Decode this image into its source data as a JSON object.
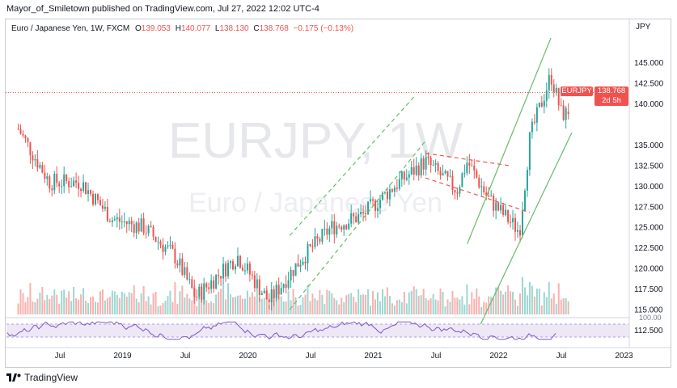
{
  "header": {
    "publisher_line": "Mayor_of_Smiletown published on TradingView.com, Jul 27, 2022 12:02 UTC-4"
  },
  "legend": {
    "symbol": "Euro / Japanese Yen, 1W, FXCM",
    "open_label": "O",
    "open": "139.053",
    "high_label": "H",
    "high": "140.077",
    "low_label": "L",
    "low": "138.130",
    "close_label": "C",
    "close": "138.768",
    "change": "−0.175 (−0.13%)"
  },
  "price_tag": {
    "symbol": "EURJPY",
    "price": "138.768",
    "countdown": "2d 5h",
    "color": "#ef5350"
  },
  "watermark": {
    "main": "EURJPY, 1W",
    "sub": "Euro / Japanese Yen"
  },
  "footer": {
    "brand": "TradingView"
  },
  "chart_data": {
    "type": "candlestick",
    "currency_label": "JPY",
    "y_ticks": [
      "145.000",
      "142.500",
      "140.000",
      "135.000",
      "132.500",
      "130.000",
      "127.500",
      "125.000",
      "122.500",
      "120.000",
      "117.500",
      "115.000",
      "112.500"
    ],
    "y_tick_values": [
      145,
      142.5,
      140,
      135,
      132.5,
      130,
      127.5,
      125,
      122.5,
      120,
      117.5,
      115,
      112.5
    ],
    "x_ticks": [
      "Jul",
      "2019",
      "Jul",
      "2020",
      "Jul",
      "2021",
      "Jul",
      "2022",
      "Jul",
      "2023"
    ],
    "last_price": 138.768,
    "ohlc_last": {
      "open": 139.053,
      "high": 140.077,
      "low": 138.13,
      "close": 138.768
    },
    "price_anchors": [
      {
        "date": "2018-03",
        "value": 137
      },
      {
        "date": "2018-06",
        "value": 130.5
      },
      {
        "date": "2018-09",
        "value": 130.5
      },
      {
        "date": "2018-12",
        "value": 126
      },
      {
        "date": "2019-03",
        "value": 125
      },
      {
        "date": "2019-06",
        "value": 121.5
      },
      {
        "date": "2019-08",
        "value": 116.5
      },
      {
        "date": "2019-12",
        "value": 121.5
      },
      {
        "date": "2020-03",
        "value": 116
      },
      {
        "date": "2020-06",
        "value": 121
      },
      {
        "date": "2020-09",
        "value": 125
      },
      {
        "date": "2020-12",
        "value": 126.5
      },
      {
        "date": "2021-03",
        "value": 130
      },
      {
        "date": "2021-06",
        "value": 133
      },
      {
        "date": "2021-09",
        "value": 129.5
      },
      {
        "date": "2021-10",
        "value": 133
      },
      {
        "date": "2021-12",
        "value": 128.5
      },
      {
        "date": "2022-03",
        "value": 124.5
      },
      {
        "date": "2022-04",
        "value": 136
      },
      {
        "date": "2022-06",
        "value": 143.5
      },
      {
        "date": "2022-07",
        "value": 138.8
      }
    ],
    "rsi_pane": true,
    "volume_pane": true,
    "drawings": {
      "green_dashed_channel": true,
      "red_dashed_channel": true,
      "green_solid_channel": true,
      "horizontal_price_line": true
    },
    "colors": {
      "up": "#26a69a",
      "down": "#ef5350",
      "channel_green": "#66bb6a",
      "channel_red": "#ef5350",
      "rsi_line": "#7e57c2",
      "rsi_band": "#ede7f6"
    }
  }
}
